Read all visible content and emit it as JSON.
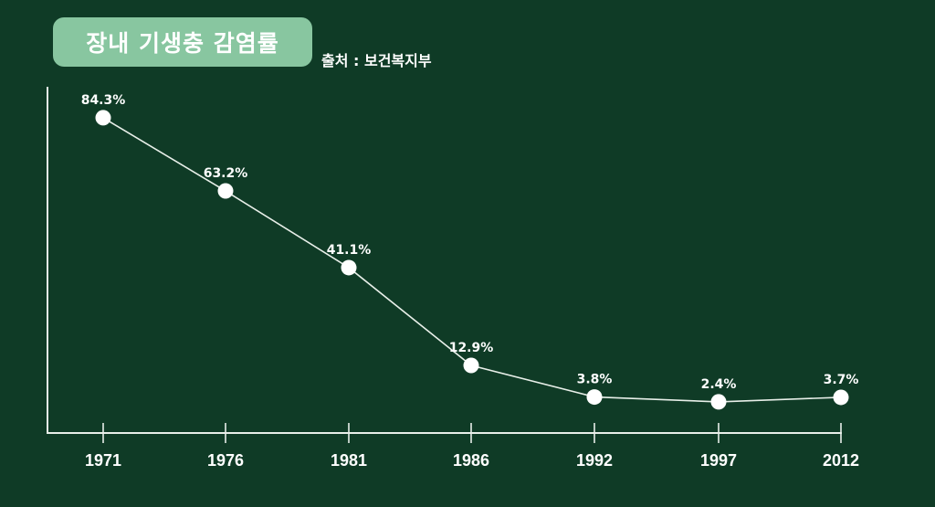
{
  "header": {
    "title": "장내 기생충 감염률",
    "source": "출처 : 보건복지부"
  },
  "colors": {
    "background": "#0f3b26",
    "title_pill": "#88c6a0",
    "line": "#e8efe9",
    "point": "#ffffff",
    "text": "#ffffff"
  },
  "chart_data": {
    "type": "line",
    "title": "장내 기생충 감염률",
    "subtitle": "출처 : 보건복지부",
    "xlabel": "",
    "ylabel": "",
    "categories": [
      "1971",
      "1976",
      "1981",
      "1986",
      "1992",
      "1997",
      "2012"
    ],
    "series": [
      {
        "name": "장내 기생충 감염률",
        "values": [
          84.3,
          63.2,
          41.1,
          12.9,
          3.8,
          2.4,
          3.7
        ],
        "labels": [
          "84.3%",
          "63.2%",
          "41.1%",
          "12.9%",
          "3.8%",
          "2.4%",
          "3.7%"
        ]
      }
    ],
    "grid": false,
    "legend": "none",
    "y_axis_ticks": false,
    "markers": "filled-circle"
  }
}
